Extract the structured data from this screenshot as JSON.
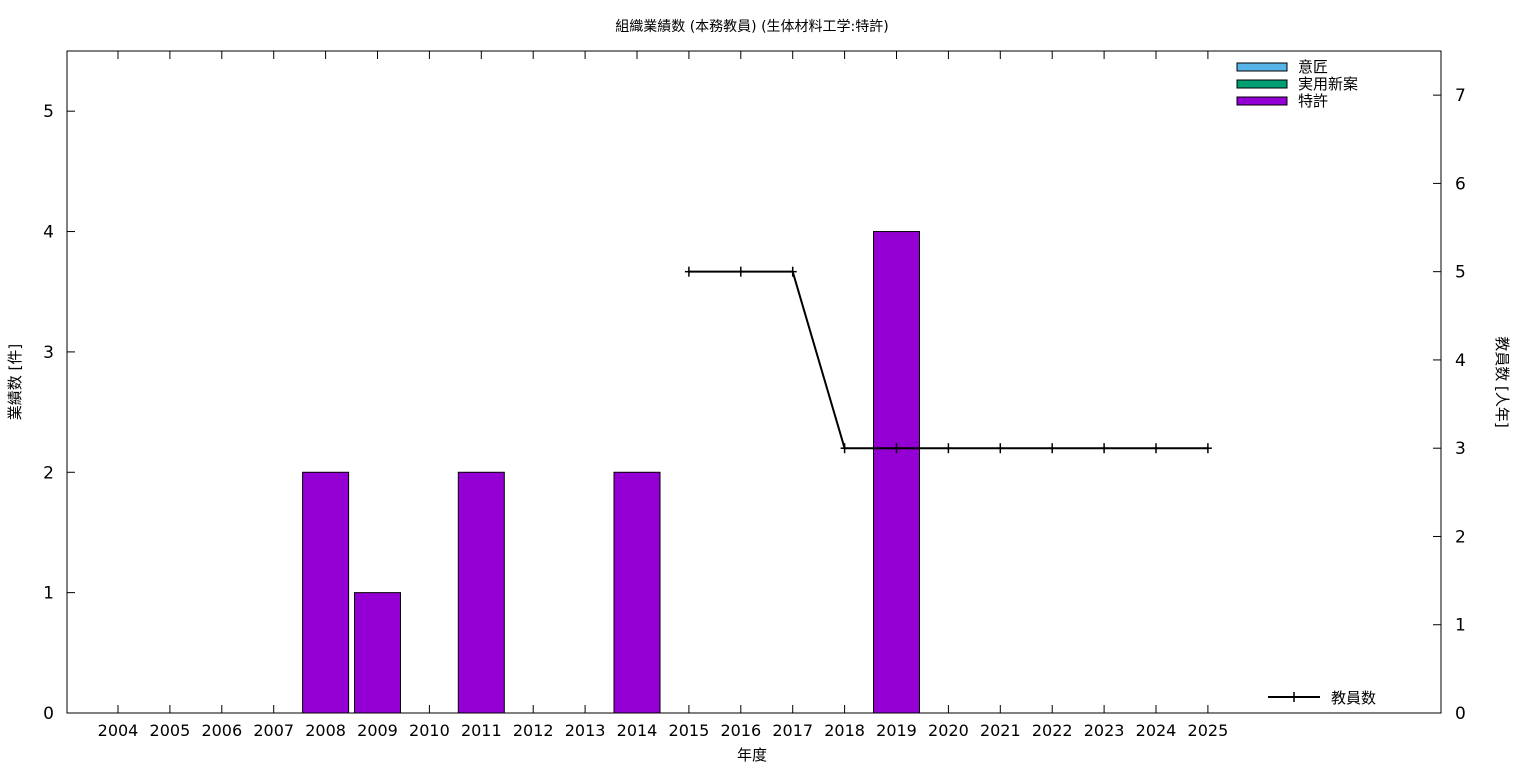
{
  "chart_data": {
    "type": "bar",
    "title": "組織業績数 (本務教員) (生体材料工学:特許)",
    "xlabel": "年度",
    "ylabel": "業績数 [件]",
    "y2label": "教員数 [人年]",
    "categories": [
      "2004",
      "2005",
      "2006",
      "2007",
      "2008",
      "2009",
      "2010",
      "2011",
      "2012",
      "2013",
      "2014",
      "2015",
      "2016",
      "2017",
      "2018",
      "2019",
      "2020",
      "2021",
      "2022",
      "2023",
      "2024",
      "2025"
    ],
    "ylim": [
      0,
      5.5
    ],
    "y_ticks": [
      "0",
      "1",
      "2",
      "3",
      "4",
      "5"
    ],
    "y2lim": [
      0,
      7.5
    ],
    "y2_ticks": [
      "0",
      "1",
      "2",
      "3",
      "4",
      "5",
      "6",
      "7"
    ],
    "series": [
      {
        "name": "意匠",
        "kind": "bar",
        "color": "#56b4e9",
        "values": [
          0,
          0,
          0,
          0,
          0,
          0,
          0,
          0,
          0,
          0,
          0,
          0,
          0,
          0,
          0,
          0,
          0,
          0,
          0,
          0,
          0,
          0
        ]
      },
      {
        "name": "実用新案",
        "kind": "bar",
        "color": "#009e73",
        "values": [
          0,
          0,
          0,
          0,
          0,
          0,
          0,
          0,
          0,
          0,
          0,
          0,
          0,
          0,
          0,
          0,
          0,
          0,
          0,
          0,
          0,
          0
        ]
      },
      {
        "name": "特許",
        "kind": "bar",
        "color": "#9400d3",
        "values": [
          0,
          0,
          0,
          0,
          2,
          1,
          0,
          2,
          0,
          0,
          2,
          0,
          0,
          0,
          0,
          4,
          0,
          0,
          0,
          0,
          0,
          0
        ]
      },
      {
        "name": "教員数",
        "kind": "line",
        "axis": "y2",
        "color": "#000000",
        "values": [
          null,
          null,
          null,
          null,
          null,
          null,
          null,
          null,
          null,
          null,
          null,
          5,
          5,
          5,
          3,
          3,
          3,
          3,
          3,
          3,
          3,
          3
        ]
      }
    ],
    "grid": false,
    "legend_position": "top-right"
  }
}
